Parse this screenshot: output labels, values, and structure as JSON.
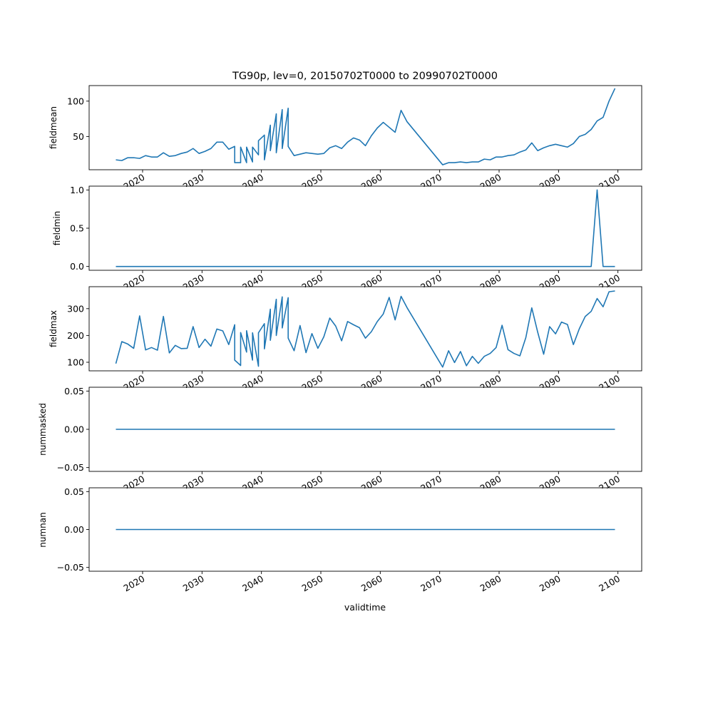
{
  "chart_data": {
    "type": "line",
    "title": "TG90p, lev=0, 20150702T0000 to 20990702T0000",
    "xlabel": "validtime",
    "line_color": "#1f77b4",
    "xlim": [
      2011,
      2104
    ],
    "xticks": [
      2020,
      2030,
      2040,
      2050,
      2060,
      2070,
      2080,
      2090,
      2100
    ],
    "xtick_labels": [
      "2020",
      "2030",
      "2040",
      "2050",
      "2060",
      "2070",
      "2080",
      "2090",
      "2100"
    ],
    "panels": [
      {
        "ylabel": "fieldmean",
        "ylim": [
          3,
          122
        ],
        "yticks": [
          50,
          100
        ],
        "ytick_labels": [
          "50",
          "100"
        ],
        "x": [
          2015.5,
          2016.5,
          2017.5,
          2018.5,
          2019.5,
          2020.5,
          2021.5,
          2022.5,
          2023.5,
          2024.5,
          2025.5,
          2026.5,
          2027.5,
          2028.5,
          2029.5,
          2030.5,
          2031.5,
          2032.5,
          2033.5,
          2034.5,
          2035.5,
          2035.5,
          2036.5,
          2036.5,
          2037.5,
          2037.5,
          2038.5,
          2038.5,
          2039.5,
          2039.5,
          2040.5,
          2040.5,
          2041.5,
          2041.5,
          2042.5,
          2042.5,
          2043.5,
          2043.5,
          2044.5,
          2044.5,
          2045.5,
          2047.5,
          2049.5,
          2050.5,
          2051.5,
          2052.5,
          2053.5,
          2054.5,
          2055.5,
          2056.5,
          2057.5,
          2058.5,
          2059.5,
          2060.5,
          2062.5,
          2063.5,
          2064.5,
          2070.5,
          2071.5,
          2072.5,
          2073.5,
          2074.5,
          2075.5,
          2076.5,
          2077.5,
          2078.5,
          2079.5,
          2080.5,
          2081.5,
          2082.5,
          2083.5,
          2084.5,
          2085.5,
          2086.5,
          2087.5,
          2088.5,
          2089.5,
          2090.5,
          2091.5,
          2092.5,
          2093.5,
          2094.5,
          2095.5,
          2096.5,
          2097.5,
          2098.5,
          2099.5
        ],
        "y": [
          17,
          16,
          20,
          20,
          19,
          23,
          21,
          21,
          27,
          22,
          23,
          26,
          28,
          33,
          26,
          29,
          33,
          42,
          42,
          32,
          36,
          13,
          13,
          35,
          13,
          35,
          14,
          35,
          24,
          44,
          52,
          17,
          66,
          30,
          82,
          27,
          88,
          33,
          90,
          36,
          23,
          27,
          25,
          26,
          34,
          37,
          33,
          42,
          48,
          45,
          37,
          51,
          62,
          70,
          56,
          87,
          71,
          10,
          13,
          13,
          14,
          13,
          14,
          14,
          18,
          17,
          21,
          21,
          23,
          24,
          28,
          31,
          41,
          30,
          34,
          37,
          39,
          37,
          35,
          40,
          50,
          53,
          60,
          72,
          77,
          100,
          118
        ]
      },
      {
        "ylabel": "fieldmin",
        "ylim": [
          -0.05,
          1.05
        ],
        "yticks": [
          0.0,
          0.5,
          1.0
        ],
        "ytick_labels": [
          "0.0",
          "0.5",
          "1.0"
        ],
        "x": [
          2015.5,
          2095.5,
          2096.5,
          2097.5,
          2099.5
        ],
        "y": [
          0,
          0,
          1,
          0,
          0
        ]
      },
      {
        "ylabel": "fieldmax",
        "ylim": [
          68,
          382
        ],
        "yticks": [
          100,
          200,
          300
        ],
        "ytick_labels": [
          "100",
          "200",
          "300"
        ],
        "x": [
          2015.5,
          2016.5,
          2017.5,
          2018.5,
          2019.5,
          2020.5,
          2021.5,
          2022.5,
          2023.5,
          2024.5,
          2025.5,
          2026.5,
          2027.5,
          2028.5,
          2029.5,
          2030.5,
          2031.5,
          2032.5,
          2033.5,
          2034.5,
          2035.5,
          2035.5,
          2036.5,
          2036.5,
          2037.5,
          2037.5,
          2038.5,
          2038.5,
          2039.5,
          2039.5,
          2040.5,
          2040.5,
          2041.5,
          2041.5,
          2042.5,
          2042.5,
          2043.5,
          2043.5,
          2044.5,
          2044.5,
          2045.5,
          2046.5,
          2047.5,
          2048.5,
          2049.5,
          2050.5,
          2051.5,
          2052.5,
          2053.5,
          2054.5,
          2055.5,
          2056.5,
          2057.5,
          2058.5,
          2059.5,
          2060.5,
          2061.5,
          2062.5,
          2063.5,
          2064.5,
          2070.5,
          2071.5,
          2072.5,
          2073.5,
          2074.5,
          2075.5,
          2076.5,
          2077.5,
          2078.5,
          2079.5,
          2080.5,
          2081.5,
          2082.5,
          2083.5,
          2084.5,
          2085.5,
          2086.5,
          2087.5,
          2088.5,
          2089.5,
          2090.5,
          2091.5,
          2092.5,
          2093.5,
          2094.5,
          2095.5,
          2096.5,
          2097.5,
          2098.5,
          2099.5
        ],
        "y": [
          95,
          177,
          168,
          152,
          273,
          146,
          155,
          145,
          271,
          135,
          163,
          151,
          152,
          233,
          155,
          186,
          160,
          224,
          217,
          166,
          240,
          108,
          88,
          211,
          138,
          218,
          108,
          210,
          85,
          210,
          244,
          150,
          298,
          182,
          335,
          200,
          344,
          228,
          341,
          190,
          143,
          237,
          136,
          207,
          152,
          195,
          265,
          235,
          180,
          252,
          240,
          229,
          190,
          214,
          252,
          280,
          342,
          258,
          346,
          304,
          82,
          143,
          99,
          140,
          87,
          122,
          96,
          122,
          133,
          155,
          238,
          147,
          133,
          124,
          192,
          303,
          212,
          130,
          233,
          206,
          250,
          241,
          166,
          225,
          271,
          290,
          338,
          307,
          363,
          366
        ]
      },
      {
        "ylabel": "nummasked",
        "ylim": [
          -0.055,
          0.055
        ],
        "yticks": [
          -0.05,
          0.0,
          0.05
        ],
        "ytick_labels": [
          "−0.05",
          "0.00",
          "0.05"
        ],
        "x": [
          2015.5,
          2099.5
        ],
        "y": [
          0,
          0
        ]
      },
      {
        "ylabel": "numnan",
        "ylim": [
          -0.055,
          0.055
        ],
        "yticks": [
          -0.05,
          0.0,
          0.05
        ],
        "ytick_labels": [
          "−0.05",
          "0.00",
          "0.05"
        ],
        "x": [
          2015.5,
          2099.5
        ],
        "y": [
          0,
          0
        ]
      }
    ]
  }
}
